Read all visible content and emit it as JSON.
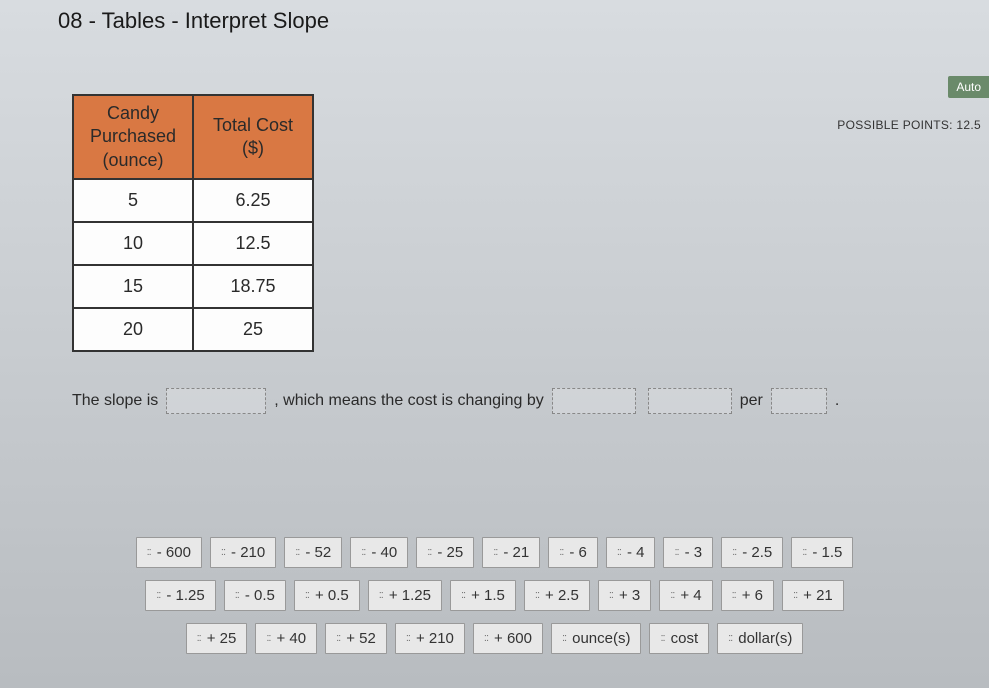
{
  "header": {
    "title": "08 - Tables - Interpret Slope"
  },
  "badges": {
    "auto": "Auto",
    "points": "POSSIBLE POINTS: 12.5"
  },
  "table": {
    "columns": [
      "Candy\nPurchased\n(ounce)",
      "Total Cost\n($)"
    ],
    "rows": [
      [
        "5",
        "6.25"
      ],
      [
        "10",
        "12.5"
      ],
      [
        "15",
        "18.75"
      ],
      [
        "20",
        "25"
      ]
    ],
    "header_bg": "#d97843",
    "border_color": "#333333"
  },
  "sentence": {
    "part1": "The slope is",
    "part2": ", which means the cost is changing by",
    "part3": "per"
  },
  "tiles": {
    "row1": [
      "- 600",
      "- 210",
      "- 52",
      "- 40",
      "- 25",
      "- 21",
      "- 6",
      "- 4",
      "- 3",
      "- 2.5",
      "- 1.5"
    ],
    "row2": [
      "- 1.25",
      "- 0.5",
      "+ 0.5",
      "+ 1.25",
      "+ 1.5",
      "+ 2.5",
      "+ 3",
      "+ 4",
      "+ 6",
      "+ 21"
    ],
    "row3": [
      "+ 25",
      "+ 40",
      "+ 52",
      "+ 210",
      "+ 600",
      "ounce(s)",
      "cost",
      "dollar(s)"
    ]
  }
}
